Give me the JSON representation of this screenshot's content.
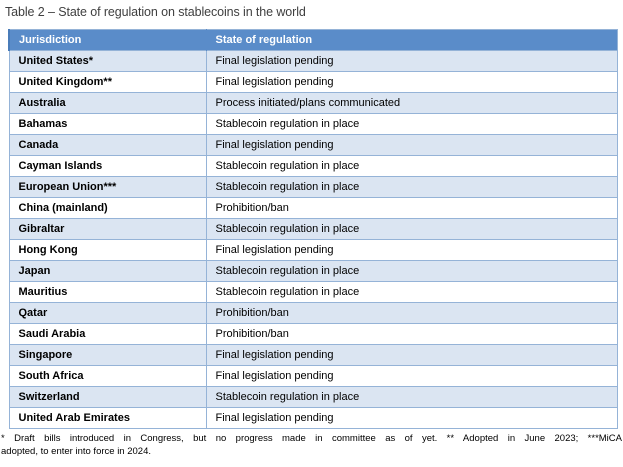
{
  "title": "Table 2 – State of regulation on stablecoins in the world",
  "table": {
    "columns": [
      "Jurisdiction",
      "State of regulation"
    ],
    "rows": [
      {
        "jurisdiction": "United States*",
        "state": "Final legislation pending"
      },
      {
        "jurisdiction": "United Kingdom**",
        "state": "Final legislation pending"
      },
      {
        "jurisdiction": "Australia",
        "state": "Process initiated/plans communicated"
      },
      {
        "jurisdiction": "Bahamas",
        "state": "Stablecoin regulation in place"
      },
      {
        "jurisdiction": "Canada",
        "state": "Final legislation pending"
      },
      {
        "jurisdiction": "Cayman Islands",
        "state": "Stablecoin regulation in place"
      },
      {
        "jurisdiction": "European Union***",
        "state": "Stablecoin regulation in place"
      },
      {
        "jurisdiction": "China (mainland)",
        "state": "Prohibition/ban"
      },
      {
        "jurisdiction": "Gibraltar",
        "state": "Stablecoin regulation in place"
      },
      {
        "jurisdiction": "Hong Kong",
        "state": "Final legislation pending"
      },
      {
        "jurisdiction": "Japan",
        "state": "Stablecoin regulation in place"
      },
      {
        "jurisdiction": "Mauritius",
        "state": "Stablecoin regulation in place"
      },
      {
        "jurisdiction": "Qatar",
        "state": "Prohibition/ban"
      },
      {
        "jurisdiction": "Saudi Arabia",
        "state": "Prohibition/ban"
      },
      {
        "jurisdiction": "Singapore",
        "state": "Final legislation pending"
      },
      {
        "jurisdiction": "South Africa",
        "state": "Final legislation pending"
      },
      {
        "jurisdiction": "Switzerland",
        "state": "Stablecoin regulation in place"
      },
      {
        "jurisdiction": "United Arab Emirates",
        "state": "Final legislation pending"
      }
    ]
  },
  "footnote_lines": [
    "* Draft bills introduced in Congress, but no progress made in committee as of yet. ** Adopted in June 2023; ***MiCA",
    "adopted, to enter into force in 2024."
  ],
  "colors": {
    "header_bg": "#5a8cc9",
    "header_text": "#ffffff",
    "stripe_bg": "#dbe5f2",
    "row_bg": "#ffffff",
    "border": "#95b3d7",
    "title_text": "#3f3f3f"
  }
}
